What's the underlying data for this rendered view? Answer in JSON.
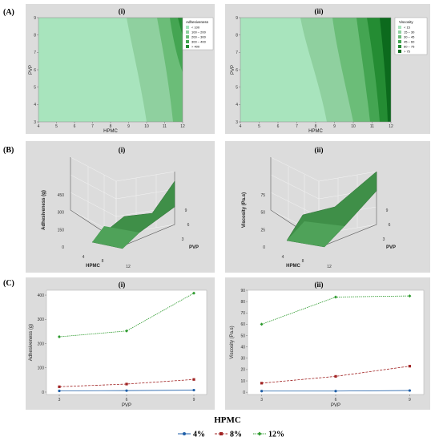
{
  "rows": {
    "A": "(A)",
    "B": "(B)",
    "C": "(C)"
  },
  "panels": {
    "i": "(i)",
    "ii": "(ii)"
  },
  "colors": {
    "panel_bg": "#dcdcdc",
    "c1": "#a8e4bd",
    "c2": "#8fd09f",
    "c3": "#6bbd78",
    "c4": "#44a552",
    "c5": "#248c33",
    "c6": "#0c6a1d",
    "s4": "#1f5fa8",
    "s8": "#a12323",
    "s12": "#2c9a2c",
    "surface": "#3f8f48"
  },
  "chart_data": [
    {
      "type": "contour",
      "panel": "A-i",
      "xlabel": "HPMC",
      "ylabel": "PVP",
      "xlim": [
        4,
        12
      ],
      "ylim": [
        3,
        9
      ],
      "xticks": [
        "4",
        "5",
        "6",
        "7",
        "8",
        "9",
        "10",
        "11",
        "12"
      ],
      "yticks": [
        "3",
        "4",
        "5",
        "6",
        "7",
        "8",
        "9"
      ],
      "legend_title": "Adhesiveness",
      "legend": [
        "<   100",
        "100 –  200",
        "200 –  300",
        "300 –  400",
        ">   400"
      ]
    },
    {
      "type": "contour",
      "panel": "A-ii",
      "xlabel": "HPMC",
      "ylabel": "PVP",
      "xlim": [
        4,
        12
      ],
      "ylim": [
        3,
        9
      ],
      "xticks": [
        "4",
        "5",
        "6",
        "7",
        "8",
        "9",
        "10",
        "11",
        "12"
      ],
      "yticks": [
        "3",
        "4",
        "5",
        "6",
        "7",
        "8",
        "9"
      ],
      "legend_title": "Viscosity",
      "legend": [
        "<   15",
        "15 –  30",
        "30 –  45",
        "45 –  60",
        "60 –  75",
        ">   75"
      ]
    },
    {
      "type": "surface",
      "panel": "B-i",
      "zlabel": "Adhesiveness (g)",
      "xlabel": "HPMC",
      "ylabel": "PVP",
      "zticks": [
        "0",
        "150",
        "300",
        "450"
      ],
      "xticks": [
        "4",
        "8",
        "12"
      ],
      "yticks": [
        "3",
        "6",
        "9"
      ]
    },
    {
      "type": "surface",
      "panel": "B-ii",
      "zlabel": "Viscosity (Pa.s)",
      "xlabel": "HPMC",
      "ylabel": "PVP",
      "zticks": [
        "0",
        "25",
        "50",
        "75"
      ],
      "xticks": [
        "4",
        "8",
        "12"
      ],
      "yticks": [
        "3",
        "6",
        "9"
      ]
    },
    {
      "type": "line",
      "panel": "C-i",
      "xlabel": "PVP",
      "ylabel": "Adhesiveness (g)",
      "x": [
        3,
        6,
        9
      ],
      "ylim": [
        -10,
        420
      ],
      "yticks": [
        0,
        100,
        200,
        300,
        400
      ],
      "series": [
        {
          "name": "4%",
          "values": [
            5,
            6,
            8
          ]
        },
        {
          "name": "8%",
          "values": [
            22,
            33,
            52
          ]
        },
        {
          "name": "12%",
          "values": [
            228,
            252,
            408
          ]
        }
      ]
    },
    {
      "type": "line",
      "panel": "C-ii",
      "xlabel": "PVP",
      "ylabel": "Viscosity (Pa.s)",
      "x": [
        3,
        6,
        9
      ],
      "ylim": [
        -2,
        90
      ],
      "yticks": [
        0,
        10,
        20,
        30,
        40,
        50,
        60,
        70,
        80,
        90
      ],
      "series": [
        {
          "name": "4%",
          "values": [
            1,
            1,
            1.5
          ]
        },
        {
          "name": "8%",
          "values": [
            8,
            14,
            23
          ]
        },
        {
          "name": "12%",
          "values": [
            60,
            84,
            85
          ]
        }
      ]
    }
  ],
  "bottom_legend": {
    "title": "HPMC",
    "items": [
      {
        "label": "4%",
        "symbol": "circle-marker"
      },
      {
        "label": "8%",
        "symbol": "square-marker"
      },
      {
        "label": "12%",
        "symbol": "diamond-marker"
      }
    ]
  }
}
